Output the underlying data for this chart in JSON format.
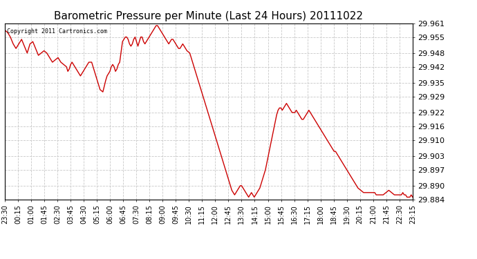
{
  "title": "Barometric Pressure per Minute (Last 24 Hours) 20111022",
  "copyright": "Copyright 2011 Cartronics.com",
  "line_color": "#cc0000",
  "background_color": "#ffffff",
  "grid_color": "#c8c8c8",
  "title_fontsize": 11,
  "ylabel_fontsize": 8,
  "xlabel_fontsize": 7,
  "ylim": [
    29.884,
    29.961
  ],
  "yticks": [
    29.884,
    29.89,
    29.897,
    29.903,
    29.91,
    29.916,
    29.922,
    29.929,
    29.935,
    29.942,
    29.948,
    29.955,
    29.961
  ],
  "xtick_labels": [
    "23:30",
    "00:15",
    "01:00",
    "01:45",
    "02:30",
    "03:45",
    "04:30",
    "05:15",
    "06:00",
    "06:45",
    "07:30",
    "08:15",
    "09:00",
    "09:45",
    "10:30",
    "11:15",
    "12:00",
    "12:45",
    "13:30",
    "14:15",
    "15:00",
    "15:45",
    "16:30",
    "17:15",
    "18:00",
    "18:45",
    "19:30",
    "20:15",
    "21:00",
    "21:45",
    "22:30",
    "23:15"
  ],
  "pressure_data": [
    [
      0,
      29.958
    ],
    [
      10,
      29.957
    ],
    [
      20,
      29.955
    ],
    [
      30,
      29.952
    ],
    [
      40,
      29.95
    ],
    [
      50,
      29.952
    ],
    [
      60,
      29.954
    ],
    [
      70,
      29.951
    ],
    [
      80,
      29.948
    ],
    [
      90,
      29.952
    ],
    [
      100,
      29.953
    ],
    [
      110,
      29.95
    ],
    [
      120,
      29.947
    ],
    [
      130,
      29.948
    ],
    [
      140,
      29.949
    ],
    [
      150,
      29.948
    ],
    [
      160,
      29.946
    ],
    [
      170,
      29.944
    ],
    [
      180,
      29.945
    ],
    [
      190,
      29.946
    ],
    [
      200,
      29.944
    ],
    [
      210,
      29.943
    ],
    [
      220,
      29.942
    ],
    [
      225,
      29.94
    ],
    [
      230,
      29.941
    ],
    [
      235,
      29.943
    ],
    [
      240,
      29.944
    ],
    [
      245,
      29.943
    ],
    [
      250,
      29.942
    ],
    [
      260,
      29.94
    ],
    [
      270,
      29.938
    ],
    [
      280,
      29.94
    ],
    [
      285,
      29.941
    ],
    [
      290,
      29.942
    ],
    [
      295,
      29.943
    ],
    [
      300,
      29.944
    ],
    [
      310,
      29.944
    ],
    [
      315,
      29.942
    ],
    [
      320,
      29.94
    ],
    [
      325,
      29.938
    ],
    [
      330,
      29.936
    ],
    [
      335,
      29.934
    ],
    [
      340,
      29.932
    ],
    [
      350,
      29.931
    ],
    [
      360,
      29.936
    ],
    [
      365,
      29.938
    ],
    [
      370,
      29.939
    ],
    [
      375,
      29.94
    ],
    [
      380,
      29.942
    ],
    [
      385,
      29.943
    ],
    [
      390,
      29.942
    ],
    [
      395,
      29.94
    ],
    [
      400,
      29.941
    ],
    [
      405,
      29.943
    ],
    [
      410,
      29.944
    ],
    [
      420,
      29.953
    ],
    [
      425,
      29.954
    ],
    [
      430,
      29.955
    ],
    [
      435,
      29.955
    ],
    [
      440,
      29.954
    ],
    [
      445,
      29.952
    ],
    [
      450,
      29.951
    ],
    [
      455,
      29.952
    ],
    [
      460,
      29.954
    ],
    [
      465,
      29.955
    ],
    [
      470,
      29.953
    ],
    [
      475,
      29.951
    ],
    [
      480,
      29.953
    ],
    [
      485,
      29.955
    ],
    [
      490,
      29.955
    ],
    [
      495,
      29.953
    ],
    [
      500,
      29.952
    ],
    [
      505,
      29.953
    ],
    [
      510,
      29.954
    ],
    [
      515,
      29.955
    ],
    [
      520,
      29.956
    ],
    [
      525,
      29.957
    ],
    [
      530,
      29.958
    ],
    [
      535,
      29.959
    ],
    [
      540,
      29.96
    ],
    [
      545,
      29.96
    ],
    [
      550,
      29.959
    ],
    [
      555,
      29.958
    ],
    [
      560,
      29.957
    ],
    [
      565,
      29.956
    ],
    [
      570,
      29.955
    ],
    [
      575,
      29.954
    ],
    [
      580,
      29.953
    ],
    [
      585,
      29.952
    ],
    [
      590,
      29.953
    ],
    [
      595,
      29.954
    ],
    [
      600,
      29.954
    ],
    [
      605,
      29.953
    ],
    [
      610,
      29.952
    ],
    [
      615,
      29.951
    ],
    [
      620,
      29.95
    ],
    [
      625,
      29.95
    ],
    [
      630,
      29.951
    ],
    [
      635,
      29.952
    ],
    [
      640,
      29.951
    ],
    [
      645,
      29.95
    ],
    [
      650,
      29.949
    ],
    [
      660,
      29.948
    ],
    [
      665,
      29.946
    ],
    [
      670,
      29.944
    ],
    [
      675,
      29.942
    ],
    [
      680,
      29.94
    ],
    [
      685,
      29.938
    ],
    [
      690,
      29.936
    ],
    [
      695,
      29.934
    ],
    [
      700,
      29.932
    ],
    [
      705,
      29.93
    ],
    [
      710,
      29.928
    ],
    [
      715,
      29.926
    ],
    [
      720,
      29.924
    ],
    [
      725,
      29.922
    ],
    [
      730,
      29.92
    ],
    [
      735,
      29.918
    ],
    [
      740,
      29.916
    ],
    [
      745,
      29.914
    ],
    [
      750,
      29.912
    ],
    [
      755,
      29.91
    ],
    [
      760,
      29.908
    ],
    [
      765,
      29.906
    ],
    [
      770,
      29.904
    ],
    [
      775,
      29.902
    ],
    [
      780,
      29.9
    ],
    [
      785,
      29.898
    ],
    [
      790,
      29.896
    ],
    [
      795,
      29.894
    ],
    [
      800,
      29.892
    ],
    [
      805,
      29.89
    ],
    [
      810,
      29.888
    ],
    [
      815,
      29.887
    ],
    [
      820,
      29.886
    ],
    [
      825,
      29.887
    ],
    [
      830,
      29.888
    ],
    [
      835,
      29.889
    ],
    [
      840,
      29.89
    ],
    [
      845,
      29.89
    ],
    [
      850,
      29.889
    ],
    [
      855,
      29.888
    ],
    [
      860,
      29.887
    ],
    [
      865,
      29.886
    ],
    [
      870,
      29.885
    ],
    [
      875,
      29.886
    ],
    [
      880,
      29.887
    ],
    [
      885,
      29.886
    ],
    [
      890,
      29.885
    ],
    [
      895,
      29.886
    ],
    [
      900,
      29.887
    ],
    [
      905,
      29.888
    ],
    [
      910,
      29.889
    ],
    [
      915,
      29.891
    ],
    [
      920,
      29.893
    ],
    [
      925,
      29.895
    ],
    [
      930,
      29.897
    ],
    [
      935,
      29.9
    ],
    [
      940,
      29.903
    ],
    [
      945,
      29.906
    ],
    [
      950,
      29.909
    ],
    [
      955,
      29.912
    ],
    [
      960,
      29.915
    ],
    [
      965,
      29.918
    ],
    [
      970,
      29.921
    ],
    [
      975,
      29.923
    ],
    [
      980,
      29.924
    ],
    [
      985,
      29.924
    ],
    [
      990,
      29.923
    ],
    [
      995,
      29.924
    ],
    [
      1000,
      29.925
    ],
    [
      1005,
      29.926
    ],
    [
      1010,
      29.925
    ],
    [
      1015,
      29.924
    ],
    [
      1020,
      29.923
    ],
    [
      1025,
      29.922
    ],
    [
      1030,
      29.922
    ],
    [
      1035,
      29.922
    ],
    [
      1040,
      29.923
    ],
    [
      1045,
      29.922
    ],
    [
      1050,
      29.921
    ],
    [
      1055,
      29.92
    ],
    [
      1060,
      29.919
    ],
    [
      1065,
      29.919
    ],
    [
      1070,
      29.92
    ],
    [
      1075,
      29.921
    ],
    [
      1080,
      29.922
    ],
    [
      1085,
      29.923
    ],
    [
      1090,
      29.922
    ],
    [
      1095,
      29.921
    ],
    [
      1100,
      29.92
    ],
    [
      1105,
      29.919
    ],
    [
      1110,
      29.918
    ],
    [
      1115,
      29.917
    ],
    [
      1120,
      29.916
    ],
    [
      1125,
      29.915
    ],
    [
      1130,
      29.914
    ],
    [
      1135,
      29.913
    ],
    [
      1140,
      29.912
    ],
    [
      1145,
      29.911
    ],
    [
      1150,
      29.91
    ],
    [
      1155,
      29.909
    ],
    [
      1160,
      29.908
    ],
    [
      1165,
      29.907
    ],
    [
      1170,
      29.906
    ],
    [
      1175,
      29.905
    ],
    [
      1180,
      29.905
    ],
    [
      1185,
      29.904
    ],
    [
      1190,
      29.903
    ],
    [
      1195,
      29.902
    ],
    [
      1200,
      29.901
    ],
    [
      1205,
      29.9
    ],
    [
      1210,
      29.899
    ],
    [
      1215,
      29.898
    ],
    [
      1220,
      29.897
    ],
    [
      1225,
      29.896
    ],
    [
      1230,
      29.895
    ],
    [
      1240,
      29.893
    ],
    [
      1250,
      29.891
    ],
    [
      1260,
      29.889
    ],
    [
      1270,
      29.888
    ],
    [
      1280,
      29.887
    ],
    [
      1290,
      29.887
    ],
    [
      1295,
      29.887
    ],
    [
      1300,
      29.887
    ],
    [
      1305,
      29.887
    ],
    [
      1310,
      29.887
    ],
    [
      1315,
      29.887
    ],
    [
      1320,
      29.887
    ],
    [
      1325,
      29.886
    ],
    [
      1330,
      29.886
    ],
    [
      1335,
      29.886
    ],
    [
      1340,
      29.886
    ],
    [
      1345,
      29.886
    ],
    [
      1350,
      29.886
    ],
    [
      1360,
      29.887
    ],
    [
      1370,
      29.888
    ],
    [
      1380,
      29.887
    ],
    [
      1390,
      29.886
    ],
    [
      1400,
      29.886
    ],
    [
      1410,
      29.886
    ],
    [
      1415,
      29.886
    ],
    [
      1420,
      29.887
    ],
    [
      1425,
      29.886
    ],
    [
      1430,
      29.886
    ],
    [
      1435,
      29.885
    ],
    [
      1440,
      29.885
    ],
    [
      1445,
      29.885
    ],
    [
      1450,
      29.886
    ],
    [
      1455,
      29.885
    ]
  ]
}
